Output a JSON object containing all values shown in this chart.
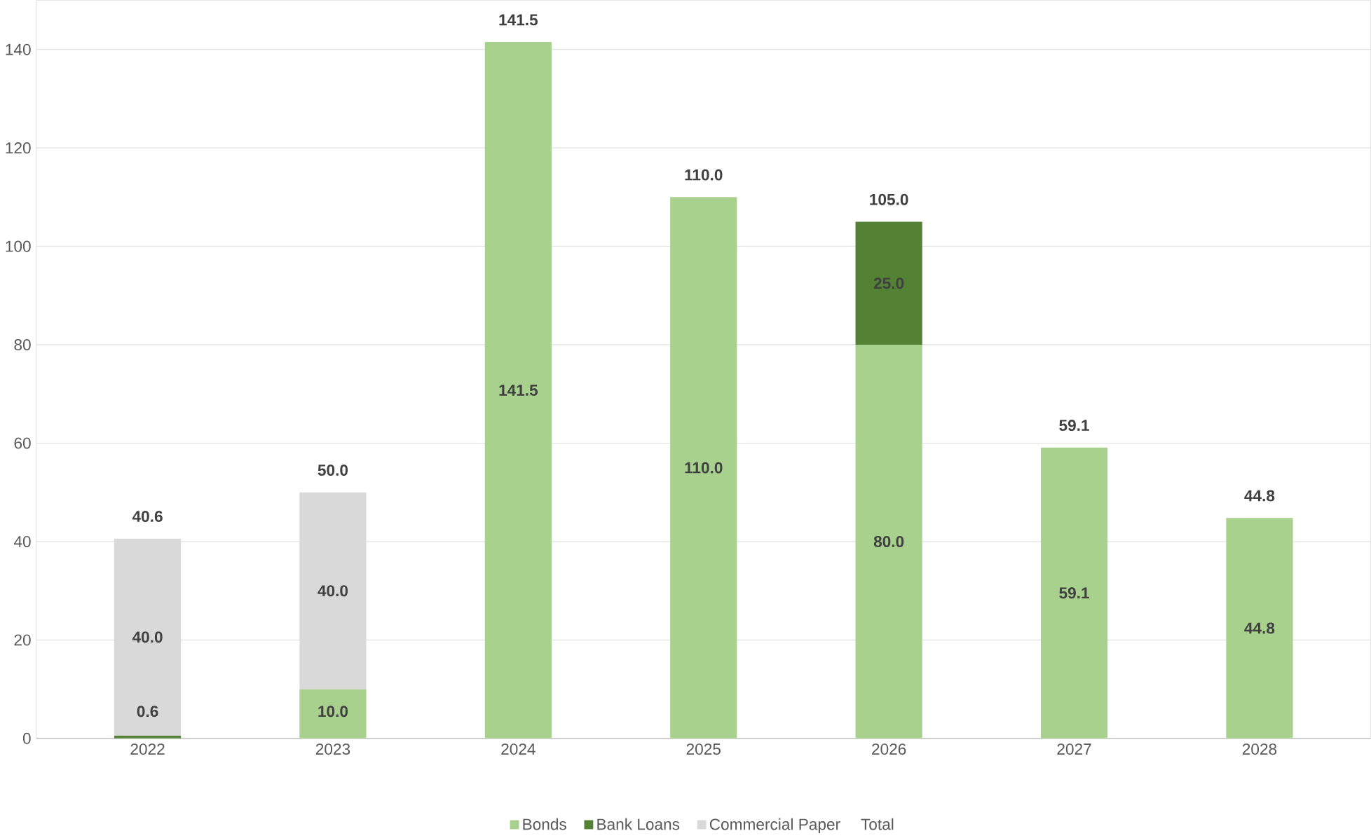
{
  "chart_data": {
    "type": "bar",
    "stacked": true,
    "categories": [
      "2022",
      "2023",
      "2024",
      "2025",
      "2026",
      "2027",
      "2028"
    ],
    "series": [
      {
        "name": "Bonds",
        "color": "#a9d18e",
        "values": [
          null,
          10.0,
          141.5,
          110.0,
          80.0,
          59.1,
          44.8
        ],
        "value_labels": [
          null,
          "10.0",
          "141.5",
          "110.0",
          "80.0",
          "59.1",
          "44.8"
        ]
      },
      {
        "name": "Bank Loans",
        "color": "#548235",
        "values": [
          0.6,
          null,
          null,
          null,
          25.0,
          null,
          null
        ],
        "value_labels": [
          "0.6",
          null,
          null,
          null,
          "25.0",
          null,
          null
        ]
      },
      {
        "name": "Commercial Paper",
        "color": "#d9d9d9",
        "values": [
          40.0,
          40.0,
          null,
          null,
          null,
          null,
          null
        ],
        "value_labels": [
          "40.0",
          "40.0",
          null,
          null,
          null,
          null,
          null
        ]
      }
    ],
    "totals": [
      "40.6",
      "50.0",
      "141.5",
      "110.0",
      "105.0",
      "59.1",
      "44.8"
    ],
    "annotations": [
      "Total"
    ],
    "ylim": [
      0,
      150
    ],
    "yticks": [
      0,
      20,
      40,
      60,
      80,
      100,
      120,
      140
    ],
    "grid": "y",
    "legend": "bottom"
  }
}
